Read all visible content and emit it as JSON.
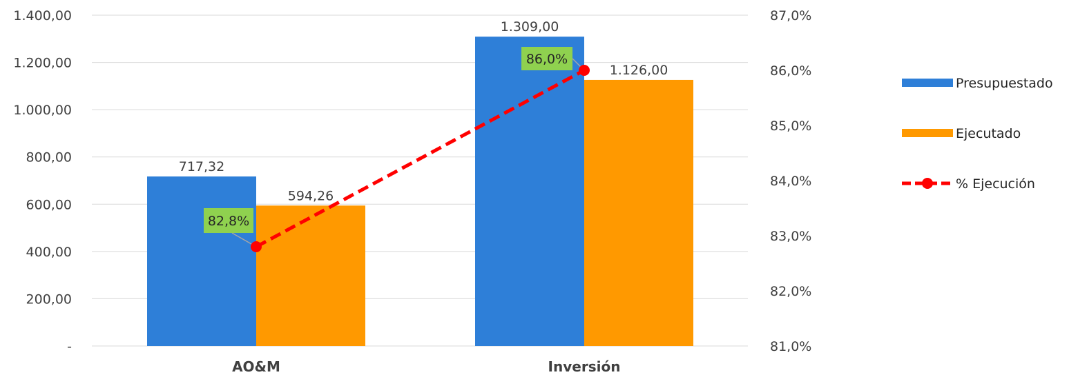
{
  "chart_data": {
    "type": "bar",
    "categories": [
      "AO&M",
      "Inversión"
    ],
    "series": [
      {
        "name": "Presupuestado",
        "kind": "bar",
        "axis": "left",
        "values": [
          717.32,
          1309.0
        ],
        "labels": [
          "717,32",
          "1.309,00"
        ],
        "color": "#2E7FD8"
      },
      {
        "name": "Ejecutado",
        "kind": "bar",
        "axis": "left",
        "values": [
          594.26,
          1126.0
        ],
        "labels": [
          "594,26",
          "1.126,00"
        ],
        "color": "#FF9900"
      },
      {
        "name": "% Ejecución",
        "kind": "line",
        "axis": "right",
        "values": [
          82.8,
          86.0
        ],
        "labels": [
          "82,8%",
          "86,0%"
        ],
        "color": "#FF0000",
        "label_bg": "#8FD14F"
      }
    ],
    "y_left": {
      "min": 0,
      "max": 1400,
      "ticks": [
        "-",
        "200,00",
        "400,00",
        "600,00",
        "800,00",
        "1.000,00",
        "1.200,00",
        "1.400,00"
      ]
    },
    "y_right": {
      "min": 81,
      "max": 87,
      "ticks": [
        "81,0%",
        "82,0%",
        "83,0%",
        "84,0%",
        "85,0%",
        "86,0%",
        "87,0%"
      ]
    },
    "grid": true,
    "legend_position": "right",
    "gridline_color": "#D9D9D9"
  }
}
